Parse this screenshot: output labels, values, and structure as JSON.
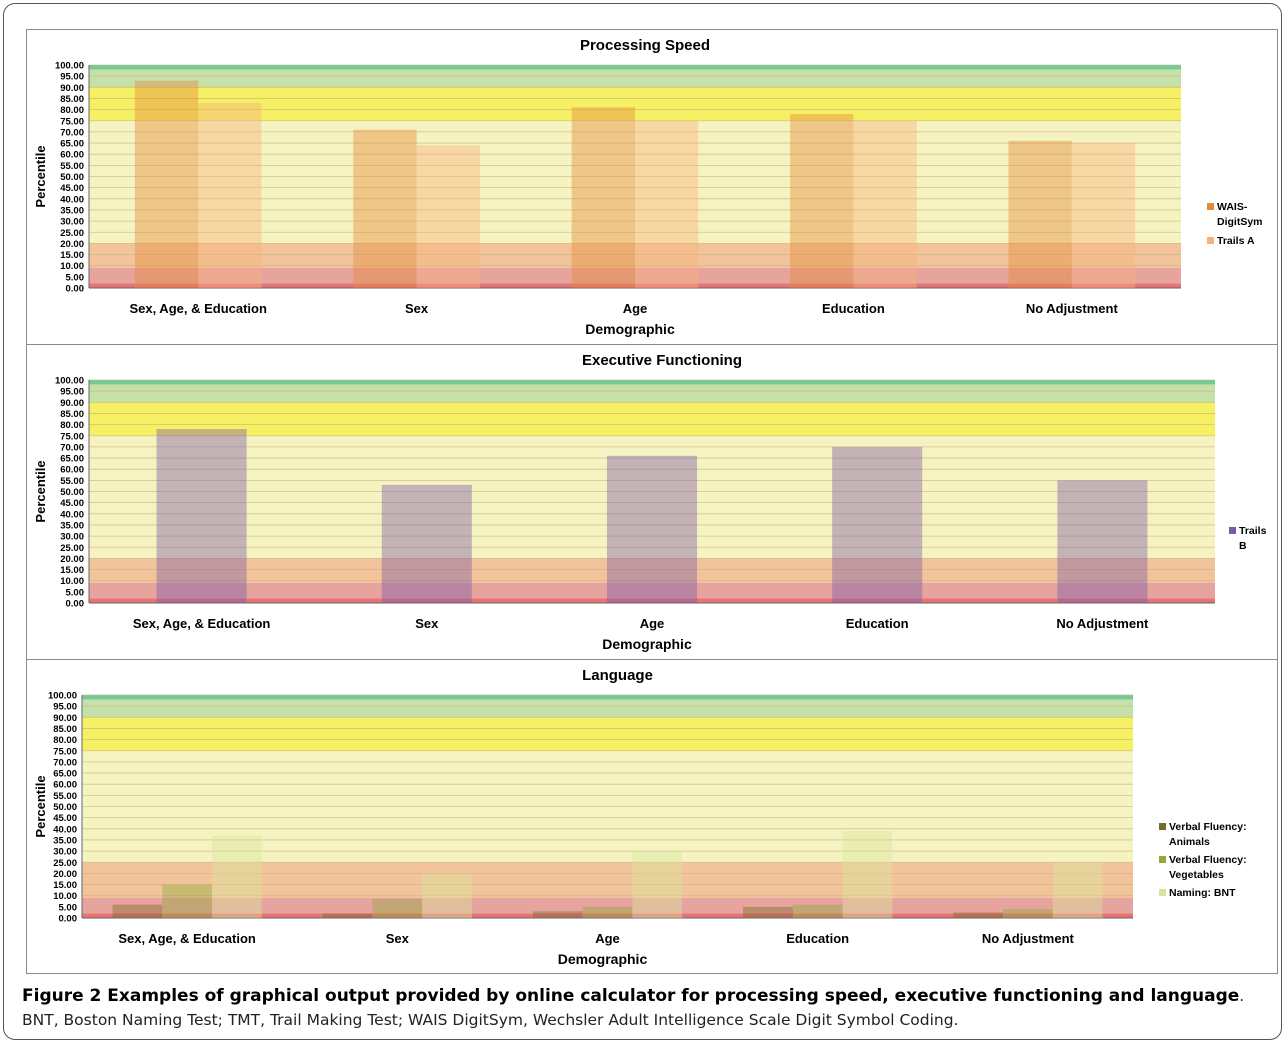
{
  "caption": {
    "title": "Figure 2 Examples of graphical output provided by online calculator for processing speed, executive functioning and language",
    "text": ". BNT, Boston Naming Test; TMT, Trail Making Test; WAIS DigitSym, Wechsler Adult Intelligence Scale Digit Symbol Coding."
  },
  "colors": {
    "band_green_dark": "#74c99a",
    "band_green": "#c5e0a8",
    "band_yellow": "#f6f065",
    "band_pale_yellow": "#f6f3c2",
    "band_orange": "#f3c49b",
    "band_pink": "#e8a3a0",
    "band_red": "#e77373",
    "gridline": "#c8b87a"
  },
  "chart_data": [
    {
      "type": "bar",
      "title": "Processing Speed",
      "xlabel": "Demographic",
      "ylabel": "Percentile",
      "ylim": [
        0,
        100
      ],
      "ytick_labels": [
        "0.00",
        "5.00",
        "10.00",
        "15.00",
        "20.00",
        "25.00",
        "30.00",
        "35.00",
        "40.00",
        "45.00",
        "50.00",
        "55.00",
        "60.00",
        "65.00",
        "70.00",
        "75.00",
        "80.00",
        "85.00",
        "90.00",
        "95.00",
        "100.00"
      ],
      "categories": [
        "Sex, Age, & Education",
        "Sex",
        "Age",
        "Education",
        "No Adjustment"
      ],
      "series": [
        {
          "name": "WAIS-DigitSym",
          "legend_lines": [
            "WAIS-",
            "DigitSym"
          ],
          "color": "#e38b3a",
          "values": [
            93,
            71,
            81,
            78,
            66
          ]
        },
        {
          "name": "Trails A",
          "legend_lines": [
            "Trails A"
          ],
          "color": "#f7b07b",
          "values": [
            83,
            64,
            75,
            75,
            65
          ]
        }
      ],
      "bands": {
        "mid_top": 90,
        "lower_top": 20
      },
      "legend": "right"
    },
    {
      "type": "bar",
      "title": "Executive Functioning",
      "xlabel": "Demographic",
      "ylabel": "Percentile",
      "ylim": [
        0,
        100
      ],
      "ytick_labels": [
        "0.00",
        "5.00",
        "10.00",
        "15.00",
        "20.00",
        "25.00",
        "30.00",
        "35.00",
        "40.00",
        "45.00",
        "50.00",
        "55.00",
        "60.00",
        "65.00",
        "70.00",
        "75.00",
        "80.00",
        "85.00",
        "90.00",
        "95.00",
        "100.00"
      ],
      "categories": [
        "Sex, Age, & Education",
        "Sex",
        "Age",
        "Education",
        "No Adjustment"
      ],
      "series": [
        {
          "name": "Trails B",
          "legend_lines": [
            "Trails",
            "B"
          ],
          "color": "#7b5aa6",
          "values": [
            78,
            53,
            66,
            70,
            55
          ]
        }
      ],
      "bands": {
        "mid_top": 90,
        "lower_top": 20
      },
      "legend": "right"
    },
    {
      "type": "bar",
      "title": "Language",
      "xlabel": "Demographic",
      "ylabel": "Percentile",
      "ylim": [
        0,
        100
      ],
      "ytick_labels": [
        "0.00",
        "5.00",
        "10.00",
        "15.00",
        "20.00",
        "25.00",
        "30.00",
        "35.00",
        "40.00",
        "45.00",
        "50.00",
        "55.00",
        "60.00",
        "65.00",
        "70.00",
        "75.00",
        "80.00",
        "85.00",
        "90.00",
        "95.00",
        "100.00"
      ],
      "categories": [
        "Sex, Age, & Education",
        "Sex",
        "Age",
        "Education",
        "No Adjustment"
      ],
      "series": [
        {
          "name": "Verbal Fluency: Animals",
          "legend_lines": [
            "Verbal Fluency:",
            "Animals"
          ],
          "color": "#7a6a2a",
          "values": [
            6,
            2,
            3,
            5,
            2.5
          ]
        },
        {
          "name": "Verbal Fluency: Vegetables",
          "legend_lines": [
            "Verbal Fluency:",
            "Vegetables"
          ],
          "color": "#8faa3c",
          "values": [
            15,
            8.5,
            5,
            6,
            4
          ]
        },
        {
          "name": "Naming: BNT",
          "legend_lines": [
            "Naming: BNT"
          ],
          "color": "#d8e49c",
          "values": [
            37,
            20,
            30,
            39,
            25
          ]
        }
      ],
      "bands": {
        "mid_top": 75,
        "lower_top": 25
      },
      "legend": "right"
    }
  ]
}
